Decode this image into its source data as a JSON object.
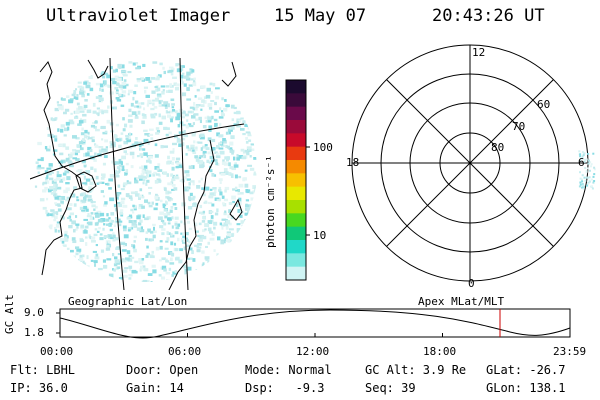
{
  "header": {
    "title": "Ultraviolet Imager",
    "date": "15 May 07",
    "time": "20:43:26 UT"
  },
  "geo_panel": {
    "label": "Geographic Lat/Lon"
  },
  "colorbar": {
    "unit_label": "photon cm⁻²s⁻¹",
    "ticks": [
      "100",
      "10"
    ],
    "colors": [
      "#1b0a2e",
      "#3a0a3a",
      "#6a0a4a",
      "#9a0a3a",
      "#c80a2a",
      "#e83a10",
      "#f58a00",
      "#f7c000",
      "#e8e800",
      "#a8e000",
      "#48d820",
      "#10c878",
      "#20d8c8",
      "#7ae8e0",
      "#d0f4f4"
    ]
  },
  "polar_panel": {
    "label": "Apex MLat/MLT",
    "mlt_labels": {
      "top": "12",
      "left": "18",
      "right": "6",
      "bottom": "0"
    },
    "lat_labels": [
      "60",
      "70",
      "80"
    ]
  },
  "alt_plot": {
    "axis_label": "GC Alt",
    "y_ticks": [
      "9.0",
      "1.8"
    ],
    "x_ticks": [
      "00:00",
      "06:00",
      "12:00",
      "18:00",
      "23:59"
    ],
    "marker_color": "#cc0000"
  },
  "status": {
    "flt": "Flt: LBHL",
    "ip": "IP: 36.0",
    "door": "Door: Open",
    "gain": "Gain: 14",
    "mode": "Mode: Normal",
    "dsp": "Dsp:   -9.3",
    "gcalt": "GC Alt: 3.9 Re",
    "seq": "Seq: 39",
    "glat": "GLat: -26.7",
    "glon": "GLon: 138.1"
  }
}
